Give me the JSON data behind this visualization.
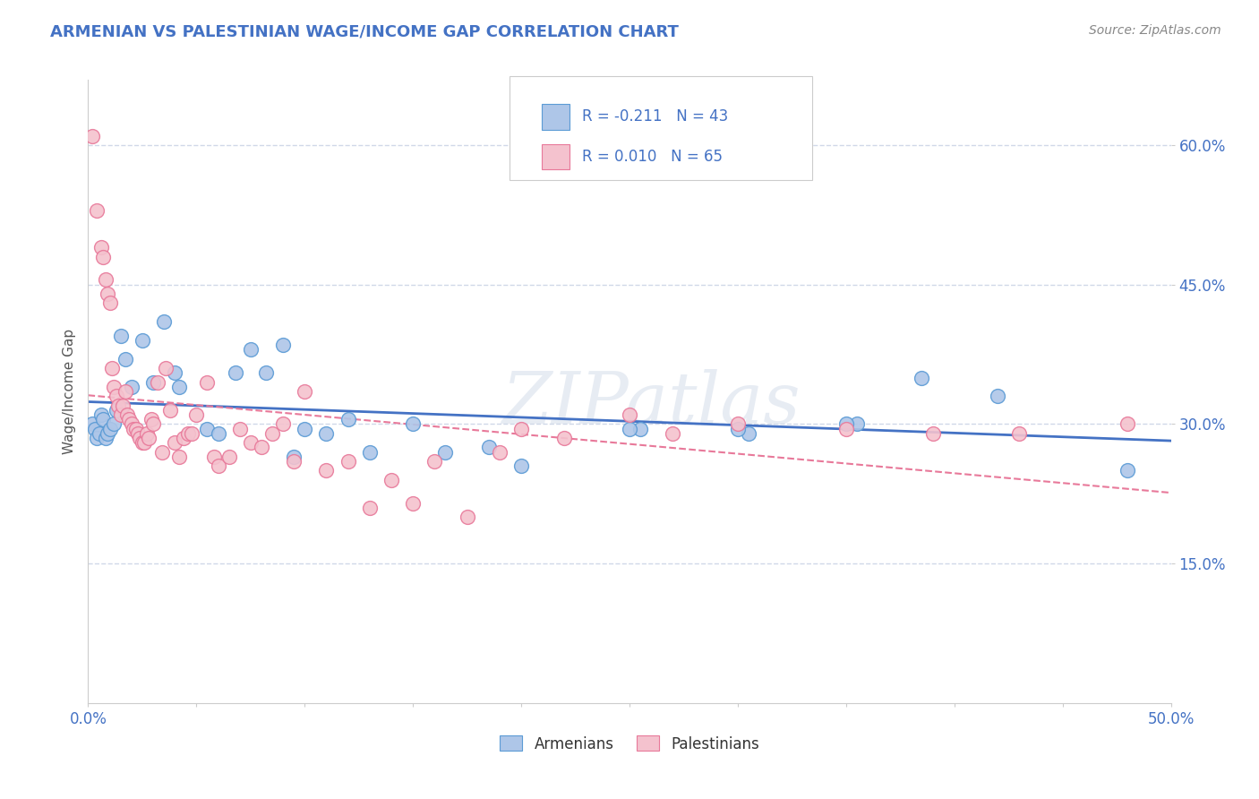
{
  "title": "ARMENIAN VS PALESTINIAN WAGE/INCOME GAP CORRELATION CHART",
  "source": "Source: ZipAtlas.com",
  "ylabel": "Wage/Income Gap",
  "legend_armenians": "Armenians",
  "legend_palestinians": "Palestinians",
  "armenian_R": -0.211,
  "armenian_N": 43,
  "palestinian_R": 0.01,
  "palestinian_N": 65,
  "armenian_color": "#aec6e8",
  "armenian_edge_color": "#5b9bd5",
  "armenian_line_color": "#4472c4",
  "palestinian_color": "#f4c2ce",
  "palestinian_edge_color": "#e8799a",
  "palestinian_line_color": "#e8799a",
  "watermark": "ZIPatlas",
  "armenian_points": [
    [
      0.002,
      0.3
    ],
    [
      0.003,
      0.295
    ],
    [
      0.004,
      0.285
    ],
    [
      0.005,
      0.29
    ],
    [
      0.006,
      0.31
    ],
    [
      0.007,
      0.305
    ],
    [
      0.008,
      0.285
    ],
    [
      0.009,
      0.29
    ],
    [
      0.01,
      0.295
    ],
    [
      0.012,
      0.3
    ],
    [
      0.013,
      0.315
    ],
    [
      0.015,
      0.395
    ],
    [
      0.017,
      0.37
    ],
    [
      0.02,
      0.34
    ],
    [
      0.025,
      0.39
    ],
    [
      0.03,
      0.345
    ],
    [
      0.035,
      0.41
    ],
    [
      0.04,
      0.355
    ],
    [
      0.042,
      0.34
    ],
    [
      0.055,
      0.295
    ],
    [
      0.06,
      0.29
    ],
    [
      0.068,
      0.355
    ],
    [
      0.075,
      0.38
    ],
    [
      0.082,
      0.355
    ],
    [
      0.09,
      0.385
    ],
    [
      0.095,
      0.265
    ],
    [
      0.1,
      0.295
    ],
    [
      0.11,
      0.29
    ],
    [
      0.12,
      0.305
    ],
    [
      0.13,
      0.27
    ],
    [
      0.15,
      0.3
    ],
    [
      0.165,
      0.27
    ],
    [
      0.185,
      0.275
    ],
    [
      0.2,
      0.255
    ],
    [
      0.255,
      0.295
    ],
    [
      0.305,
      0.29
    ],
    [
      0.355,
      0.3
    ],
    [
      0.385,
      0.35
    ],
    [
      0.42,
      0.33
    ],
    [
      0.25,
      0.295
    ],
    [
      0.3,
      0.295
    ],
    [
      0.35,
      0.3
    ],
    [
      0.48,
      0.25
    ]
  ],
  "palestinian_points": [
    [
      0.002,
      0.61
    ],
    [
      0.004,
      0.53
    ],
    [
      0.006,
      0.49
    ],
    [
      0.007,
      0.48
    ],
    [
      0.008,
      0.455
    ],
    [
      0.009,
      0.44
    ],
    [
      0.01,
      0.43
    ],
    [
      0.011,
      0.36
    ],
    [
      0.012,
      0.34
    ],
    [
      0.013,
      0.33
    ],
    [
      0.014,
      0.32
    ],
    [
      0.015,
      0.31
    ],
    [
      0.016,
      0.32
    ],
    [
      0.017,
      0.335
    ],
    [
      0.018,
      0.31
    ],
    [
      0.019,
      0.305
    ],
    [
      0.02,
      0.3
    ],
    [
      0.021,
      0.295
    ],
    [
      0.022,
      0.295
    ],
    [
      0.023,
      0.29
    ],
    [
      0.024,
      0.285
    ],
    [
      0.025,
      0.28
    ],
    [
      0.026,
      0.28
    ],
    [
      0.027,
      0.29
    ],
    [
      0.028,
      0.285
    ],
    [
      0.029,
      0.305
    ],
    [
      0.03,
      0.3
    ],
    [
      0.032,
      0.345
    ],
    [
      0.034,
      0.27
    ],
    [
      0.036,
      0.36
    ],
    [
      0.038,
      0.315
    ],
    [
      0.04,
      0.28
    ],
    [
      0.042,
      0.265
    ],
    [
      0.044,
      0.285
    ],
    [
      0.046,
      0.29
    ],
    [
      0.048,
      0.29
    ],
    [
      0.05,
      0.31
    ],
    [
      0.055,
      0.345
    ],
    [
      0.058,
      0.265
    ],
    [
      0.06,
      0.255
    ],
    [
      0.065,
      0.265
    ],
    [
      0.07,
      0.295
    ],
    [
      0.075,
      0.28
    ],
    [
      0.08,
      0.275
    ],
    [
      0.085,
      0.29
    ],
    [
      0.09,
      0.3
    ],
    [
      0.095,
      0.26
    ],
    [
      0.1,
      0.335
    ],
    [
      0.11,
      0.25
    ],
    [
      0.12,
      0.26
    ],
    [
      0.13,
      0.21
    ],
    [
      0.14,
      0.24
    ],
    [
      0.15,
      0.215
    ],
    [
      0.16,
      0.26
    ],
    [
      0.175,
      0.2
    ],
    [
      0.19,
      0.27
    ],
    [
      0.2,
      0.295
    ],
    [
      0.22,
      0.285
    ],
    [
      0.25,
      0.31
    ],
    [
      0.27,
      0.29
    ],
    [
      0.3,
      0.3
    ],
    [
      0.35,
      0.295
    ],
    [
      0.39,
      0.29
    ],
    [
      0.43,
      0.29
    ],
    [
      0.48,
      0.3
    ]
  ],
  "xlim": [
    0.0,
    0.5
  ],
  "ylim": [
    0.0,
    0.67
  ],
  "yticks": [
    0.15,
    0.3,
    0.45,
    0.6
  ],
  "ytick_labels": [
    "15.0%",
    "30.0%",
    "45.0%",
    "60.0%"
  ],
  "grid_color": "#d0d8e8",
  "background_color": "#ffffff",
  "title_color": "#4472c4",
  "source_color": "#888888"
}
